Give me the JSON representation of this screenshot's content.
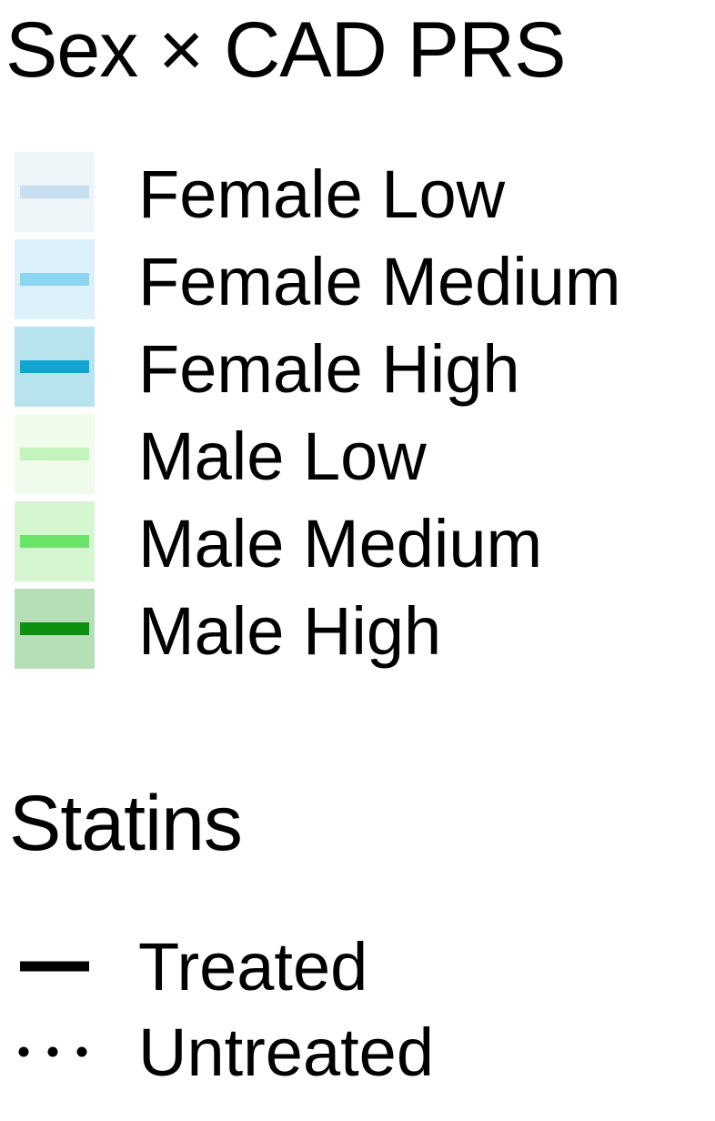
{
  "chart_data": {
    "type": "legend",
    "legends": [
      {
        "title": "Sex × CAD PRS",
        "entries": [
          {
            "label": "Female Low",
            "fill": "#eef6fa",
            "line": "#c7dff0"
          },
          {
            "label": "Female Medium",
            "fill": "#dcf1fa",
            "line": "#8dd6f1"
          },
          {
            "label": "Female High",
            "fill": "#b7e3ef",
            "line": "#13a4cf"
          },
          {
            "label": "Male Low",
            "fill": "#effcec",
            "line": "#c2f4bc"
          },
          {
            "label": "Male Medium",
            "fill": "#d6f6d2",
            "line": "#6ae368"
          },
          {
            "label": "Male High",
            "fill": "#b6deb7",
            "line": "#0e9011"
          }
        ]
      },
      {
        "title": "Statins",
        "entries": [
          {
            "label": "Treated",
            "linetype": "solid",
            "color": "#000000"
          },
          {
            "label": "Untreated",
            "linetype": "dotted",
            "color": "#000000"
          }
        ]
      }
    ]
  }
}
